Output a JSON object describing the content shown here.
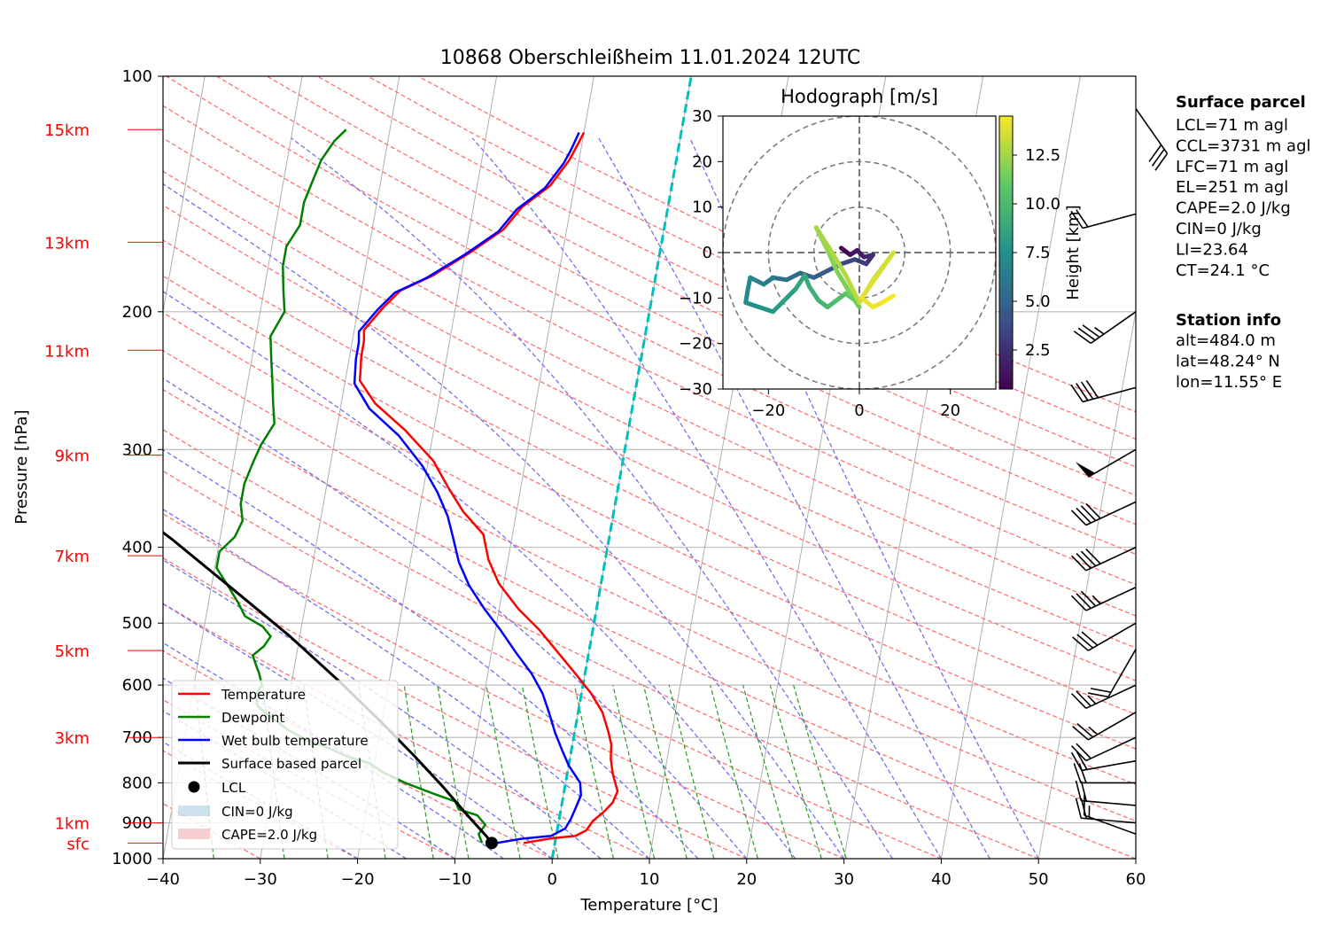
{
  "title": "10868 Oberschleißheim 11.01.2024 12UTC",
  "chart_data": [
    {
      "type": "line",
      "chart": "skew-t",
      "xlabel": "Temperature [°C]",
      "ylabel": "Pressure [hPa]",
      "xlim": [
        -40,
        60
      ],
      "ylim": [
        1000,
        100
      ],
      "y_scale": "log",
      "x_ticks": [
        -40,
        -30,
        -20,
        -10,
        0,
        10,
        20,
        30,
        40,
        50,
        60
      ],
      "x_tick_labels": [
        "−40",
        "−30",
        "−20",
        "−10",
        "0",
        "10",
        "20",
        "30",
        "40",
        "50",
        "60"
      ],
      "y_ticks": [
        100,
        200,
        300,
        400,
        500,
        600,
        700,
        800,
        900,
        1000
      ],
      "y_tick_labels": [
        "100",
        "200",
        "300",
        "400",
        "500",
        "600",
        "700",
        "800",
        "900",
        "1000"
      ],
      "height_labels": [
        {
          "pressure": 955,
          "label": "sfc"
        },
        {
          "pressure": 900,
          "label": "1km"
        },
        {
          "pressure": 700,
          "label": "3km"
        },
        {
          "pressure": 542,
          "label": "5km"
        },
        {
          "pressure": 410,
          "label": "7km"
        },
        {
          "pressure": 305,
          "label": "9km"
        },
        {
          "pressure": 224,
          "label": "11km"
        },
        {
          "pressure": 163,
          "label": "13km"
        },
        {
          "pressure": 117,
          "label": "15km"
        }
      ],
      "colors": {
        "temperature": "#ff0000",
        "dewpoint": "#008000",
        "wetbulb": "#0000ff",
        "parcel": "#000000",
        "isotherm_zero": "#00bfbf",
        "height_labels": "#ff0000",
        "dry_adiabats": "#ff7070",
        "moist_adiabats": "#7070ee",
        "mixing_ratio": "#2a9a2a",
        "skewed_isotherms": "#b0b0b0",
        "isobars": "#b8b8b8"
      },
      "series": [
        {
          "name": "Temperature",
          "points": [
            [
              -3.2,
              955
            ],
            [
              -0.5,
              942
            ],
            [
              2.0,
              935
            ],
            [
              3.0,
              920
            ],
            [
              3.5,
              895
            ],
            [
              4.5,
              870
            ],
            [
              5.2,
              848
            ],
            [
              5.5,
              820
            ],
            [
              4.7,
              780
            ],
            [
              4.2,
              745
            ],
            [
              4.0,
              715
            ],
            [
              3.5,
              690
            ],
            [
              2.5,
              650
            ],
            [
              1.0,
              615
            ],
            [
              -1.0,
              580
            ],
            [
              -3.5,
              540
            ],
            [
              -5.5,
              510
            ],
            [
              -8.0,
              480
            ],
            [
              -10.5,
              445
            ],
            [
              -12.0,
              415
            ],
            [
              -13.0,
              385
            ],
            [
              -15.5,
              360
            ],
            [
              -17.5,
              335
            ],
            [
              -19.5,
              310
            ],
            [
              -23.0,
              283
            ],
            [
              -26.5,
              262
            ],
            [
              -28.5,
              245
            ],
            [
              -28.8,
              228
            ],
            [
              -28.8,
              218
            ],
            [
              -29.0,
              211
            ],
            [
              -27.5,
              198
            ],
            [
              -26.0,
              188
            ],
            [
              -23.0,
              180
            ],
            [
              -19.5,
              168
            ],
            [
              -16.5,
              157
            ],
            [
              -15.0,
              147
            ],
            [
              -12.5,
              138
            ],
            [
              -11.0,
              128
            ],
            [
              -10.5,
              123
            ],
            [
              -10.0,
              118
            ]
          ]
        },
        {
          "name": "Dewpoint",
          "points": [
            [
              -7.5,
              955
            ],
            [
              -8.0,
              930
            ],
            [
              -7.5,
              905
            ],
            [
              -8.5,
              880
            ],
            [
              -10.5,
              865
            ],
            [
              -11.0,
              845
            ],
            [
              -13.5,
              825
            ],
            [
              -16.5,
              800
            ],
            [
              -19.0,
              775
            ],
            [
              -20.5,
              755
            ],
            [
              -23.0,
              740
            ],
            [
              -25.0,
              722
            ],
            [
              -27.5,
              704
            ],
            [
              -29.5,
              685
            ],
            [
              -31.0,
              665
            ],
            [
              -33.0,
              640
            ],
            [
              -33.5,
              618
            ],
            [
              -33.0,
              600
            ],
            [
              -33.5,
              580
            ],
            [
              -34.0,
              565
            ],
            [
              -34.5,
              550
            ],
            [
              -33.5,
              535
            ],
            [
              -33.0,
              520
            ],
            [
              -34.0,
              505
            ],
            [
              -36.0,
              490
            ],
            [
              -37.0,
              470
            ],
            [
              -38.5,
              445
            ],
            [
              -39.8,
              425
            ],
            [
              -39.8,
              405
            ],
            [
              -38.5,
              388
            ],
            [
              -38.0,
              370
            ],
            [
              -38.5,
              352
            ],
            [
              -38.5,
              332
            ],
            [
              -38.0,
              312
            ],
            [
              -37.5,
              296
            ],
            [
              -36.5,
              278
            ],
            [
              -37.0,
              262
            ],
            [
              -37.5,
              245
            ],
            [
              -38.0,
              230
            ],
            [
              -38.5,
              215
            ],
            [
              -37.5,
              200
            ],
            [
              -38.0,
              188
            ],
            [
              -38.5,
              175
            ],
            [
              -38.5,
              165
            ],
            [
              -37.5,
              155
            ],
            [
              -37.5,
              145
            ],
            [
              -37.0,
              136
            ],
            [
              -36.5,
              128
            ],
            [
              -35.5,
              121
            ],
            [
              -34.5,
              117
            ]
          ]
        },
        {
          "name": "Wet bulb temperature",
          "points": [
            [
              -6.0,
              955
            ],
            [
              -3.5,
              943
            ],
            [
              -0.5,
              935
            ],
            [
              0.8,
              915
            ],
            [
              1.2,
              890
            ],
            [
              1.5,
              860
            ],
            [
              1.8,
              830
            ],
            [
              1.5,
              800
            ],
            [
              0.0,
              760
            ],
            [
              -1.0,
              725
            ],
            [
              -2.0,
              690
            ],
            [
              -3.0,
              650
            ],
            [
              -4.0,
              615
            ],
            [
              -5.5,
              580
            ],
            [
              -7.5,
              545
            ],
            [
              -9.5,
              510
            ],
            [
              -11.5,
              480
            ],
            [
              -13.5,
              448
            ],
            [
              -15.0,
              418
            ],
            [
              -16.0,
              390
            ],
            [
              -17.0,
              365
            ],
            [
              -18.5,
              340
            ],
            [
              -20.5,
              315
            ],
            [
              -23.5,
              288
            ],
            [
              -27.0,
              266
            ],
            [
              -29.0,
              247
            ],
            [
              -29.3,
              230
            ],
            [
              -29.3,
              219
            ],
            [
              -29.5,
              212
            ],
            [
              -28.0,
              199
            ],
            [
              -26.5,
              189
            ],
            [
              -23.5,
              181
            ],
            [
              -20.0,
              169
            ],
            [
              -17.0,
              158
            ],
            [
              -15.5,
              148
            ],
            [
              -13.0,
              139
            ],
            [
              -11.5,
              129
            ],
            [
              -11.0,
              124
            ],
            [
              -10.5,
              118
            ]
          ]
        },
        {
          "name": "Surface based parcel",
          "points": [
            [
              -6.5,
              955
            ],
            [
              -7.2,
              935
            ],
            [
              -9.5,
              880
            ],
            [
              -12.5,
              810
            ],
            [
              -16.0,
              740
            ],
            [
              -20.0,
              670
            ],
            [
              -25.0,
              595
            ],
            [
              -31.0,
              520
            ],
            [
              -38.0,
              450
            ],
            [
              -45.0,
              390
            ],
            [
              -53.0,
              335
            ]
          ]
        }
      ],
      "lcl_point": [
        -6.5,
        955
      ],
      "legend_position": "lower-left",
      "legend": {
        "temperature": "Temperature",
        "dewpoint": "Dewpoint",
        "wetbulb": "Wet bulb temperature",
        "parcel": "Surface based parcel",
        "lcl": "LCL",
        "cin": "CIN=0 J/kg",
        "cape": "CAPE=2.0 J/kg"
      },
      "wind_barbs": [
        {
          "pressure": 930,
          "speed_kt": 15,
          "dir": 290
        },
        {
          "pressure": 900,
          "speed_kt": 20,
          "dir": 275
        },
        {
          "pressure": 855,
          "speed_kt": 20,
          "dir": 275
        },
        {
          "pressure": 800,
          "speed_kt": 20,
          "dir": 270
        },
        {
          "pressure": 750,
          "speed_kt": 20,
          "dir": 260
        },
        {
          "pressure": 700,
          "speed_kt": 20,
          "dir": 245
        },
        {
          "pressure": 650,
          "speed_kt": 25,
          "dir": 240
        },
        {
          "pressure": 600,
          "speed_kt": 25,
          "dir": 245
        },
        {
          "pressure": 540,
          "speed_kt": 20,
          "dir": 210
        },
        {
          "pressure": 500,
          "speed_kt": 30,
          "dir": 240
        },
        {
          "pressure": 450,
          "speed_kt": 35,
          "dir": 245
        },
        {
          "pressure": 400,
          "speed_kt": 40,
          "dir": 245
        },
        {
          "pressure": 350,
          "speed_kt": 40,
          "dir": 245
        },
        {
          "pressure": 300,
          "speed_kt": 50,
          "dir": 240
        },
        {
          "pressure": 250,
          "speed_kt": 40,
          "dir": 255
        },
        {
          "pressure": 200,
          "speed_kt": 35,
          "dir": 235
        },
        {
          "pressure": 150,
          "speed_kt": 20,
          "dir": 255
        },
        {
          "pressure": 110,
          "speed_kt": 30,
          "dir": 145
        }
      ]
    },
    {
      "type": "line",
      "chart": "hodograph",
      "title": "Hodograph [m/s]",
      "xlim": [
        -30,
        30
      ],
      "ylim": [
        -30,
        30
      ],
      "x_ticks": [
        -20,
        0,
        20
      ],
      "x_tick_labels": [
        "−20",
        "0",
        "20"
      ],
      "y_ticks": [
        -30,
        -20,
        -10,
        0,
        10,
        20,
        30
      ],
      "y_tick_labels": [
        "−30",
        "−20",
        "−10",
        "0",
        "10",
        "20",
        "30"
      ],
      "rings": [
        10,
        20,
        30
      ],
      "colorbar_label": "Height [km]",
      "colorbar_range": [
        0.5,
        14.5
      ],
      "colorbar_ticks": [
        2.5,
        5.0,
        7.5,
        10.0,
        12.5
      ],
      "colorbar_tick_labels": [
        "2.5",
        "5.0",
        "7.5",
        "10.0",
        "12.5"
      ],
      "trace": [
        [
          -4,
          1,
          0.5
        ],
        [
          -2,
          -0.5,
          1.0
        ],
        [
          -0.5,
          0.5,
          1.4
        ],
        [
          1,
          -1,
          1.8
        ],
        [
          3,
          -0.5,
          2.2
        ],
        [
          1.5,
          -2.5,
          2.8
        ],
        [
          -1,
          -1.5,
          3.2
        ],
        [
          -4,
          -2.5,
          3.8
        ],
        [
          -7,
          -4,
          4.2
        ],
        [
          -10,
          -5.5,
          4.8
        ],
        [
          -13,
          -4.5,
          5.2
        ],
        [
          -16,
          -6,
          5.6
        ],
        [
          -19,
          -5.5,
          6.0
        ],
        [
          -21,
          -7,
          6.4
        ],
        [
          -24,
          -5.5,
          6.8
        ],
        [
          -24.5,
          -8,
          7.0
        ],
        [
          -25,
          -11,
          7.2
        ],
        [
          -22,
          -12,
          7.5
        ],
        [
          -19,
          -13,
          7.8
        ],
        [
          -17,
          -11,
          8.1
        ],
        [
          -14,
          -8,
          8.4
        ],
        [
          -12,
          -5,
          8.8
        ],
        [
          -11,
          -7.5,
          9.1
        ],
        [
          -9,
          -10.5,
          9.4
        ],
        [
          -7,
          -12,
          9.8
        ],
        [
          -5,
          -10.5,
          10.2
        ],
        [
          -3,
          -9,
          10.6
        ],
        [
          -1,
          -10.5,
          10.9
        ],
        [
          0,
          -12,
          11.2
        ],
        [
          -2,
          -9,
          11.5
        ],
        [
          -5,
          -4,
          11.8
        ],
        [
          -7,
          0.5,
          12.1
        ],
        [
          -9.5,
          5.5,
          12.4
        ],
        [
          -6,
          0,
          12.7
        ],
        [
          -3,
          -5,
          12.9
        ],
        [
          0,
          -11,
          13.1
        ],
        [
          3,
          -6,
          13.3
        ],
        [
          7.5,
          0,
          13.5
        ],
        [
          4,
          -5,
          13.7
        ],
        [
          0.5,
          -10,
          13.9
        ],
        [
          3,
          -12,
          14.1
        ],
        [
          5,
          -11,
          14.3
        ],
        [
          7.5,
          -9.5,
          14.5
        ]
      ]
    }
  ],
  "info_panel": {
    "parcel_title": "Surface parcel",
    "parcel_lines": [
      "LCL=71 m agl",
      "CCL=3731 m agl",
      "LFC=71 m agl",
      "EL=251 m agl",
      "CAPE=2.0 J/kg",
      "CIN=0 J/kg",
      "LI=23.64",
      "CT=24.1 °C"
    ],
    "station_title": "Station info",
    "station_lines": [
      "alt=484.0 m",
      "lat=48.24° N",
      "lon=11.55° E"
    ]
  }
}
